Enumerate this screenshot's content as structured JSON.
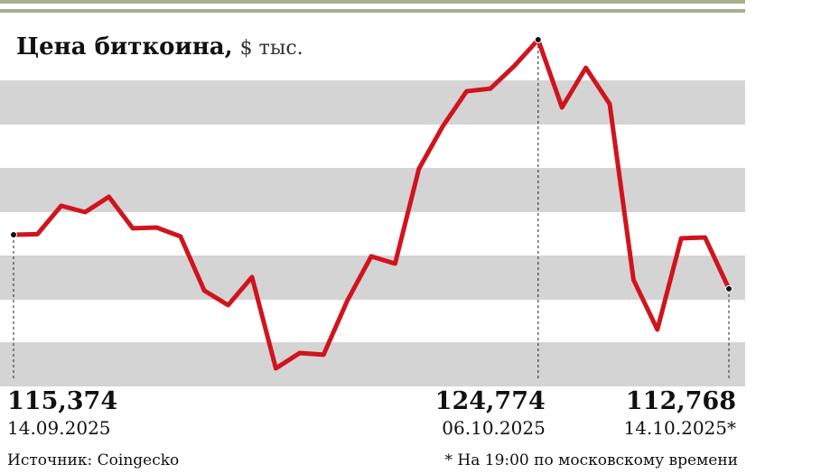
{
  "chart_data": {
    "type": "line",
    "title": "Цена биткоина,",
    "units": "$ тыс.",
    "categories": [
      "14.09.2025",
      null,
      null,
      null,
      null,
      null,
      null,
      null,
      null,
      null,
      null,
      null,
      null,
      null,
      null,
      null,
      null,
      null,
      null,
      null,
      null,
      null,
      "06.10.2025",
      null,
      null,
      null,
      null,
      null,
      null,
      null,
      "14.10.2025*"
    ],
    "series": [
      {
        "name": "Bitcoin",
        "color": "#d0141e",
        "values": [
          115374,
          115400,
          116770,
          116460,
          117200,
          115680,
          115720,
          115290,
          112680,
          111980,
          113330,
          108930,
          109670,
          109590,
          112200,
          114330,
          113980,
          118550,
          120600,
          122290,
          122420,
          123510,
          124774,
          121510,
          123420,
          121680,
          113200,
          110800,
          115200,
          115240,
          112768
        ],
        "value_labels": [
          "115,374",
          null,
          null,
          null,
          null,
          null,
          null,
          null,
          null,
          null,
          null,
          null,
          null,
          null,
          null,
          null,
          null,
          null,
          null,
          null,
          null,
          null,
          "124,774",
          null,
          null,
          null,
          null,
          null,
          null,
          null,
          "112,768"
        ]
      }
    ],
    "source": "Источник: Coingecko",
    "footnote": "* На 19:00 по московскому времени"
  }
}
